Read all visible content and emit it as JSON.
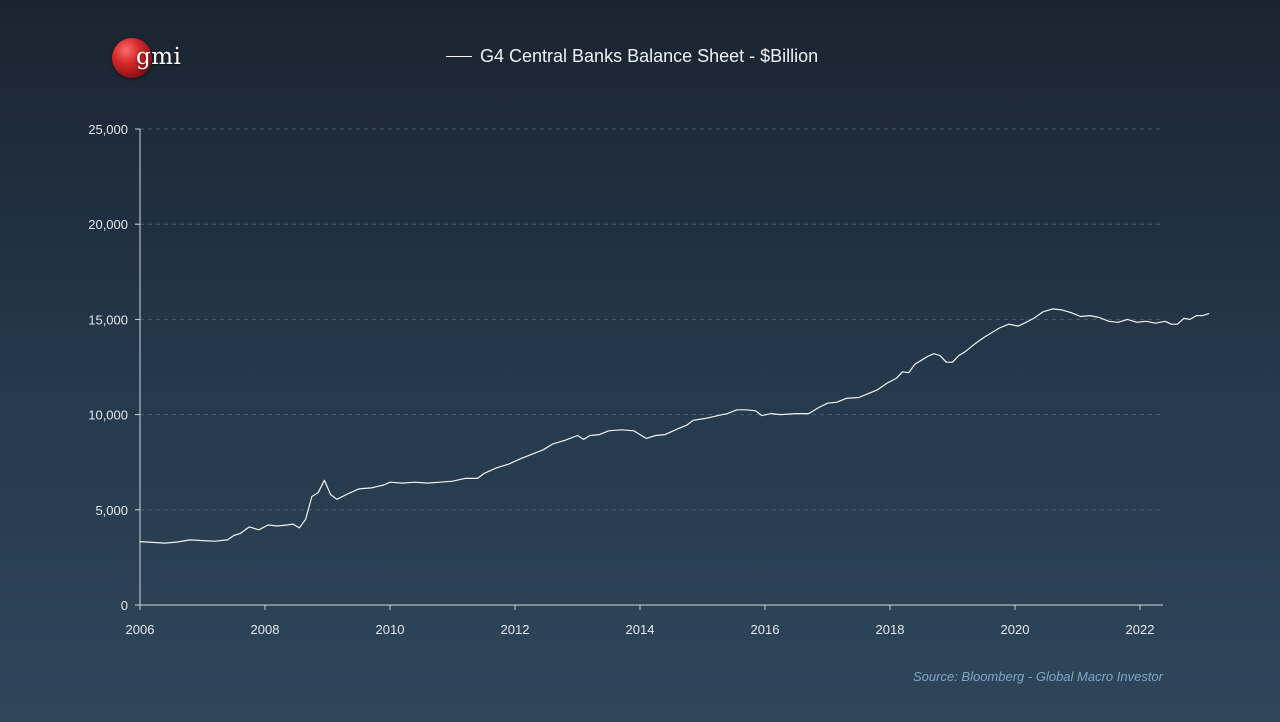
{
  "logo": {
    "text": "gmi",
    "globe_color": "#c81e1e"
  },
  "colors": {
    "background_top": "#1a2430",
    "background_bottom": "#2f4659",
    "line": "#f3f3f3",
    "grid": "#4b5d6e",
    "axis": "#cfd6dc",
    "source_text": "#7fa6c8"
  },
  "source": "Source: Bloomberg - Global Macro Investor",
  "chart_data": {
    "type": "line",
    "title": "",
    "xlabel": "",
    "ylabel": "",
    "xlim": [
      2006,
      2022.4
    ],
    "ylim": [
      0,
      25000
    ],
    "x_ticks": [
      2006,
      2008,
      2010,
      2012,
      2014,
      2016,
      2018,
      2020,
      2022
    ],
    "x_tick_labels": [
      "2006",
      "2008",
      "2010",
      "2012",
      "2014",
      "2016",
      "2018",
      "2020",
      "2022"
    ],
    "y_ticks": [
      0,
      5000,
      10000,
      15000,
      20000,
      25000
    ],
    "y_tick_labels": [
      "0",
      "5,000",
      "10,000",
      "15,000",
      "20,000",
      "25,000"
    ],
    "grid": "horizontal dashed",
    "legend_position": "top-center",
    "series": [
      {
        "name": "G4 Central Banks Balance Sheet - $Billion",
        "color": "#f3f3f3",
        "points": [
          [
            2006.0,
            3330
          ],
          [
            2006.2,
            3290
          ],
          [
            2006.4,
            3250
          ],
          [
            2006.6,
            3310
          ],
          [
            2006.8,
            3420
          ],
          [
            2007.0,
            3380
          ],
          [
            2007.2,
            3350
          ],
          [
            2007.4,
            3420
          ],
          [
            2007.5,
            3650
          ],
          [
            2007.6,
            3750
          ],
          [
            2007.75,
            4100
          ],
          [
            2007.9,
            3950
          ],
          [
            2008.05,
            4200
          ],
          [
            2008.2,
            4150
          ],
          [
            2008.35,
            4200
          ],
          [
            2008.45,
            4250
          ],
          [
            2008.55,
            4050
          ],
          [
            2008.65,
            4500
          ],
          [
            2008.75,
            5700
          ],
          [
            2008.85,
            5900
          ],
          [
            2008.95,
            6550
          ],
          [
            2009.05,
            5800
          ],
          [
            2009.15,
            5550
          ],
          [
            2009.3,
            5800
          ],
          [
            2009.5,
            6100
          ],
          [
            2009.7,
            6150
          ],
          [
            2009.9,
            6300
          ],
          [
            2010.0,
            6450
          ],
          [
            2010.2,
            6400
          ],
          [
            2010.4,
            6450
          ],
          [
            2010.6,
            6400
          ],
          [
            2010.8,
            6450
          ],
          [
            2011.0,
            6500
          ],
          [
            2011.2,
            6650
          ],
          [
            2011.4,
            6650
          ],
          [
            2011.5,
            6900
          ],
          [
            2011.7,
            7200
          ],
          [
            2011.9,
            7400
          ],
          [
            2012.1,
            7700
          ],
          [
            2012.3,
            7950
          ],
          [
            2012.45,
            8150
          ],
          [
            2012.6,
            8450
          ],
          [
            2012.8,
            8650
          ],
          [
            2013.0,
            8900
          ],
          [
            2013.1,
            8700
          ],
          [
            2013.2,
            8900
          ],
          [
            2013.35,
            8950
          ],
          [
            2013.5,
            9150
          ],
          [
            2013.7,
            9200
          ],
          [
            2013.9,
            9150
          ],
          [
            2014.0,
            8950
          ],
          [
            2014.1,
            8750
          ],
          [
            2014.25,
            8900
          ],
          [
            2014.4,
            8950
          ],
          [
            2014.6,
            9250
          ],
          [
            2014.75,
            9450
          ],
          [
            2014.85,
            9700
          ],
          [
            2015.05,
            9800
          ],
          [
            2015.25,
            9950
          ],
          [
            2015.4,
            10050
          ],
          [
            2015.55,
            10250
          ],
          [
            2015.7,
            10250
          ],
          [
            2015.85,
            10200
          ],
          [
            2015.95,
            9950
          ],
          [
            2016.1,
            10050
          ],
          [
            2016.25,
            10000
          ],
          [
            2016.5,
            10050
          ],
          [
            2016.7,
            10050
          ],
          [
            2016.85,
            10350
          ],
          [
            2017.0,
            10600
          ],
          [
            2017.15,
            10650
          ],
          [
            2017.3,
            10850
          ],
          [
            2017.5,
            10900
          ],
          [
            2017.65,
            11100
          ],
          [
            2017.8,
            11300
          ],
          [
            2017.95,
            11650
          ],
          [
            2018.1,
            11900
          ],
          [
            2018.2,
            12250
          ],
          [
            2018.3,
            12200
          ],
          [
            2018.4,
            12650
          ],
          [
            2018.5,
            12850
          ],
          [
            2018.6,
            13050
          ],
          [
            2018.7,
            13200
          ],
          [
            2018.8,
            13100
          ],
          [
            2018.9,
            12750
          ],
          [
            2019.0,
            12750
          ],
          [
            2019.1,
            13100
          ],
          [
            2019.2,
            13300
          ],
          [
            2019.35,
            13700
          ],
          [
            2019.5,
            14050
          ],
          [
            2019.6,
            14250
          ],
          [
            2019.75,
            14550
          ],
          [
            2019.9,
            14750
          ],
          [
            2020.05,
            14650
          ],
          [
            2020.15,
            14800
          ],
          [
            2020.3,
            15050
          ],
          [
            2020.45,
            15400
          ],
          [
            2020.6,
            15550
          ],
          [
            2020.75,
            15500
          ],
          [
            2020.9,
            15350
          ],
          [
            2021.05,
            15150
          ],
          [
            2021.2,
            15200
          ],
          [
            2021.35,
            15100
          ],
          [
            2021.5,
            14900
          ],
          [
            2021.65,
            14850
          ],
          [
            2021.8,
            15000
          ],
          [
            2021.95,
            14850
          ],
          [
            2022.1,
            14900
          ],
          [
            2022.25,
            14800
          ],
          [
            2022.4,
            14900
          ],
          [
            2022.5,
            14750
          ],
          [
            2022.6,
            14750
          ],
          [
            2022.7,
            15050
          ],
          [
            2022.8,
            15000
          ],
          [
            2022.9,
            15200
          ],
          [
            2023.0,
            15200
          ],
          [
            2023.1,
            15300
          ]
        ]
      }
    ]
  }
}
